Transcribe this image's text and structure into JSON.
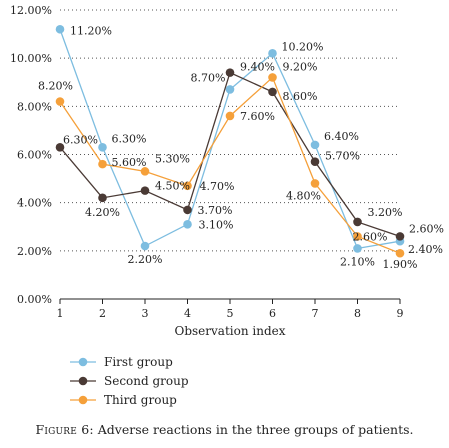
{
  "chart_data": {
    "type": "line",
    "x": [
      1,
      2,
      3,
      4,
      5,
      6,
      7,
      8,
      9
    ],
    "xlabel": "Observation index",
    "ylabel": "",
    "ylim": [
      0,
      12
    ],
    "yticks": [
      "0.00%",
      "2.00%",
      "4.00%",
      "6.00%",
      "8.00%",
      "10.00%",
      "12.00%"
    ],
    "ytick_values": [
      0,
      2,
      4,
      6,
      8,
      10,
      12
    ],
    "xticks": [
      "1",
      "2",
      "3",
      "4",
      "5",
      "6",
      "7",
      "8",
      "9"
    ],
    "grid": "horizontal-dotted",
    "legend_position": "bottom-left",
    "series": [
      {
        "name": "First group",
        "color": "#7dbde0",
        "values": [
          11.2,
          6.3,
          2.2,
          3.1,
          8.7,
          10.2,
          6.4,
          2.1,
          2.4
        ],
        "labels": [
          "11.20%",
          "6.30%",
          "2.20%",
          "3.10%",
          "8.70%",
          "10.20%",
          "6.40%",
          "2.10%",
          "2.40%"
        ]
      },
      {
        "name": "Second group",
        "color": "#4a3a35",
        "values": [
          6.3,
          4.2,
          4.5,
          3.7,
          9.4,
          8.6,
          5.7,
          3.2,
          2.6
        ],
        "labels": [
          "6.30%",
          "4.20%",
          "4.50%",
          "3.70%",
          "9.40%",
          "8.60%",
          "5.70%",
          "3.20%",
          "2.60%"
        ]
      },
      {
        "name": "Third group",
        "color": "#f5a03a",
        "values": [
          8.2,
          5.6,
          5.3,
          4.7,
          7.6,
          9.2,
          4.8,
          2.6,
          1.9
        ],
        "labels": [
          "8.20%",
          "5.60%",
          "5.30%",
          "4.70%",
          "7.60%",
          "9.20%",
          "4.80%",
          "2.60%",
          "1.90%"
        ]
      }
    ]
  },
  "caption": {
    "figure_tag": "Figure 6:",
    "text": " Adverse reactions in the three groups of patients."
  }
}
